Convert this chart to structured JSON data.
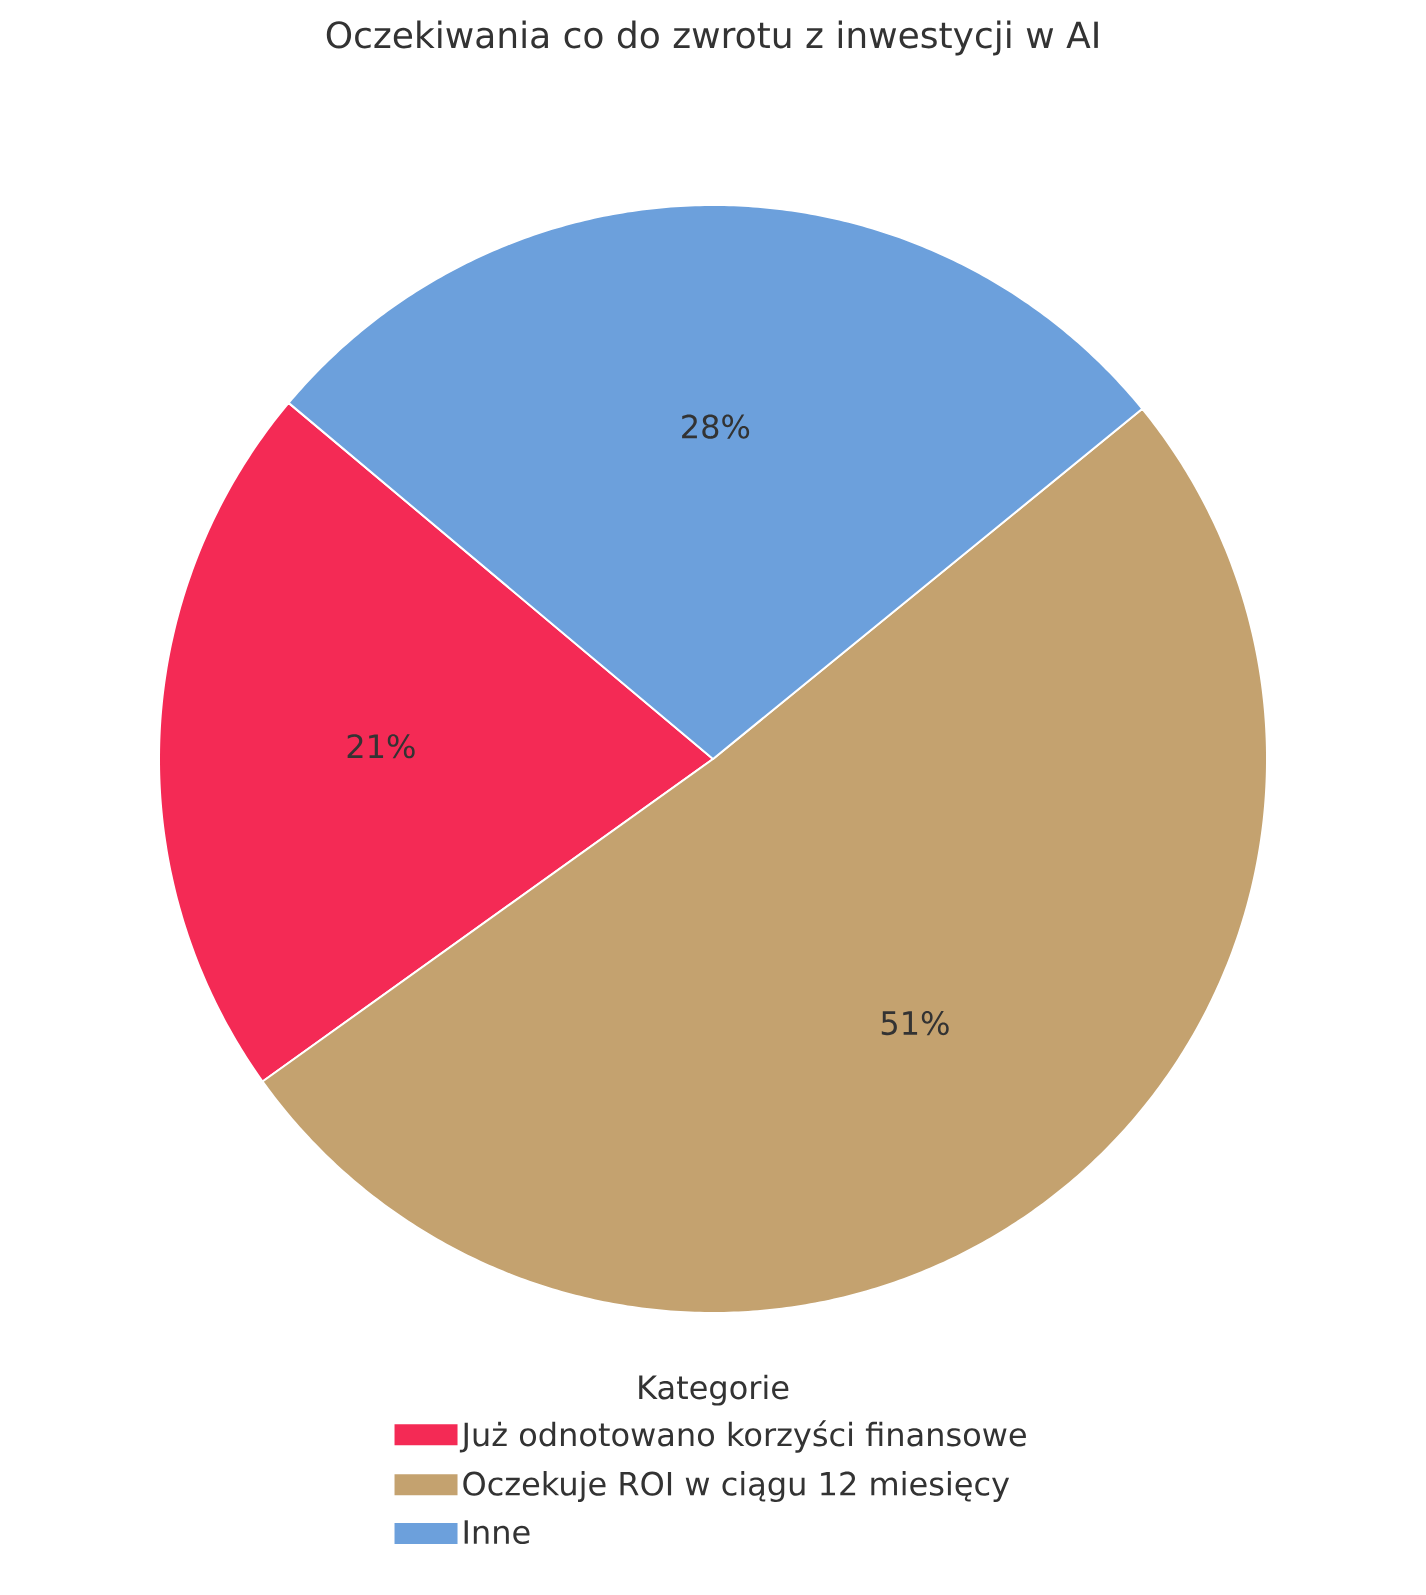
{
  "chart_data": {
    "type": "pie",
    "title": "Oczekiwania co do zwrotu z inwestycji w AI",
    "categories": [
      "Już odnotowano korzyści finansowe",
      "Oczekuje ROI w ciągu 12 miesięcy",
      "Inne"
    ],
    "values": [
      21,
      51,
      28
    ],
    "colors": [
      "#f42a55",
      "#c4a26f",
      "#6ca0dc"
    ],
    "value_labels": [
      "21%",
      "51%",
      "28%"
    ],
    "legend": "bottom",
    "legend_title": "Kategorie"
  }
}
